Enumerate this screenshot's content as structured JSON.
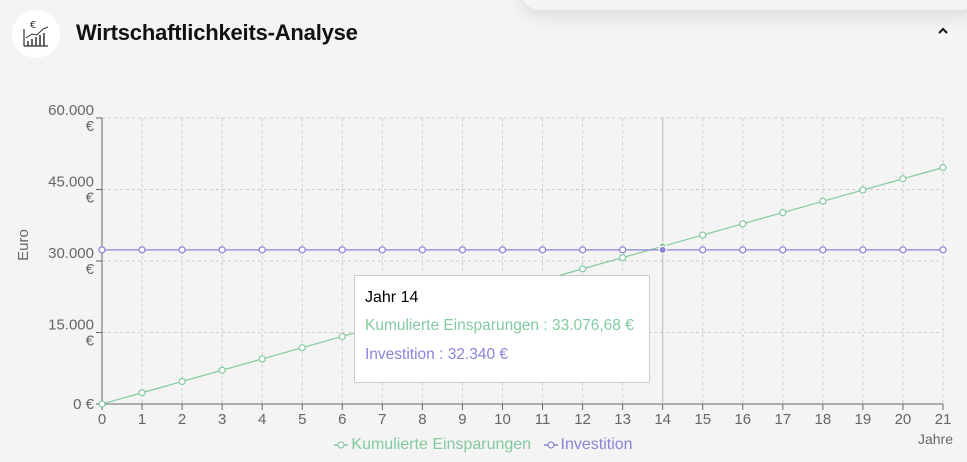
{
  "header": {
    "title": "Wirtschaftlichkeits-Analyse",
    "icon": "chart-euro-icon",
    "collapse_icon": "chevron-up-icon"
  },
  "tooltip": {
    "title": "Jahr 14",
    "savings_label": "Kumulierte Einsparungen",
    "savings_value": "33.076,68 €",
    "investment_label": "Investition",
    "investment_value": "32.340 €",
    "savings_text": "Kumulierte Einsparungen : 33.076,68 €",
    "investment_text": "Investition : 32.340 €"
  },
  "legend": {
    "savings": "Kumulierte Einsparungen",
    "investment": "Investition"
  },
  "chart_data": {
    "type": "line",
    "title": "",
    "xlabel": "Jahre",
    "ylabel": "Euro",
    "x": [
      0,
      1,
      2,
      3,
      4,
      5,
      6,
      7,
      8,
      9,
      10,
      11,
      12,
      13,
      14,
      15,
      16,
      17,
      18,
      19,
      20,
      21
    ],
    "ylim": [
      0,
      60000
    ],
    "y_ticks": [
      0,
      15000,
      30000,
      45000,
      60000
    ],
    "y_tick_labels": [
      [
        "0 €"
      ],
      [
        "15.000",
        "€"
      ],
      [
        "30.000",
        "€"
      ],
      [
        "45.000",
        "€"
      ],
      [
        "60.000",
        "€"
      ]
    ],
    "grid": true,
    "legend_position": "bottom",
    "active_x": 14,
    "series": [
      {
        "name": "Kumulierte Einsparungen",
        "color": "#82ca9d",
        "values": [
          0,
          2363,
          4725,
          7088,
          9450,
          11813,
          14175,
          16538,
          18900,
          21263,
          23625,
          25988,
          28351,
          30713,
          33077,
          35439,
          37802,
          40164,
          42527,
          44889,
          47252,
          49614
        ]
      },
      {
        "name": "Investition",
        "color": "#8884d8",
        "values": [
          32340,
          32340,
          32340,
          32340,
          32340,
          32340,
          32340,
          32340,
          32340,
          32340,
          32340,
          32340,
          32340,
          32340,
          32340,
          32340,
          32340,
          32340,
          32340,
          32340,
          32340,
          32340
        ]
      }
    ]
  },
  "colors": {
    "savings": "#82ca9d",
    "investment": "#8884d8",
    "grid": "#cccccc",
    "axis": "#666666"
  }
}
